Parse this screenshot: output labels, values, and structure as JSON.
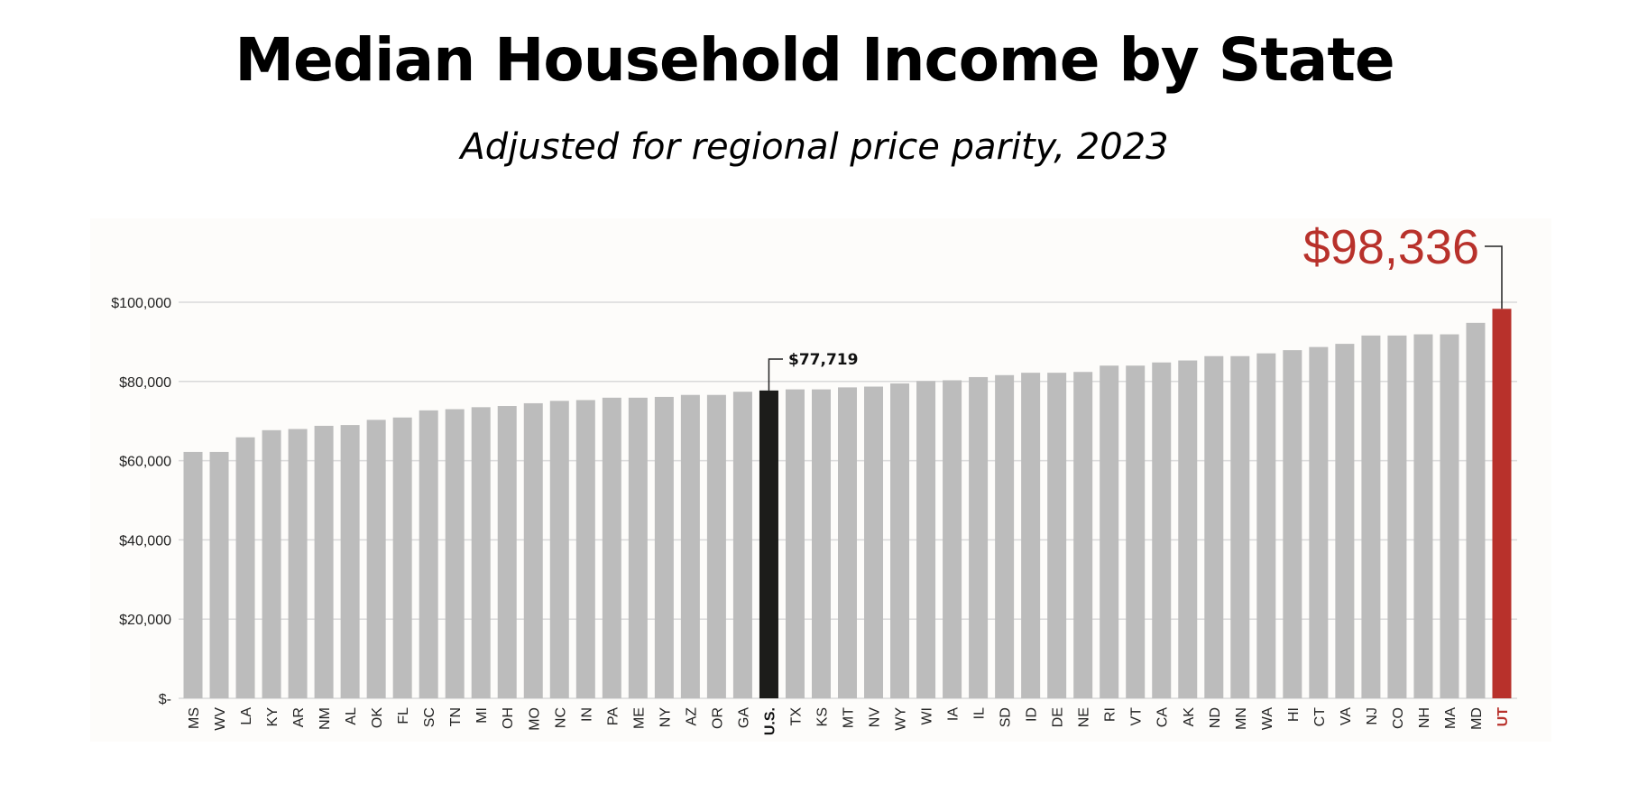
{
  "chart_data": {
    "type": "bar",
    "title": "Median Household Income by State",
    "subtitle": "Adjusted for regional price parity, 2023",
    "xlabel": "",
    "ylabel": "",
    "ylim": [
      0,
      100000
    ],
    "yticks": [
      0,
      20000,
      40000,
      60000,
      80000,
      100000
    ],
    "ytick_labels": [
      "$-",
      "$20,000",
      "$40,000",
      "$60,000",
      "$80,000",
      "$100,000"
    ],
    "grid": true,
    "categories": [
      "MS",
      "WV",
      "LA",
      "KY",
      "AR",
      "NM",
      "AL",
      "OK",
      "FL",
      "SC",
      "TN",
      "MI",
      "OH",
      "MO",
      "NC",
      "IN",
      "PA",
      "ME",
      "NY",
      "AZ",
      "OR",
      "GA",
      "U.S.",
      "TX",
      "KS",
      "MT",
      "NV",
      "WY",
      "WI",
      "IA",
      "IL",
      "SD",
      "ID",
      "DE",
      "NE",
      "RI",
      "VT",
      "CA",
      "AK",
      "ND",
      "MN",
      "WA",
      "HI",
      "CT",
      "VA",
      "NJ",
      "CO",
      "NH",
      "MA",
      "MD",
      "UT"
    ],
    "values": [
      62200,
      62200,
      65900,
      67700,
      68000,
      68800,
      69000,
      70300,
      70900,
      72700,
      73000,
      73500,
      73800,
      74500,
      75100,
      75300,
      75900,
      75900,
      76100,
      76600,
      76600,
      77400,
      77719,
      78000,
      78000,
      78500,
      78700,
      79500,
      80100,
      80300,
      81100,
      81600,
      82200,
      82200,
      82400,
      84000,
      84000,
      84800,
      85300,
      86400,
      86400,
      87100,
      87900,
      88700,
      89500,
      91600,
      91600,
      91900,
      91900,
      94800,
      98336
    ],
    "highlights": {
      "U.S.": {
        "label": "$77,719",
        "color": "#1c1c1a"
      },
      "UT": {
        "label": "$98,336",
        "color": "#b8312b"
      }
    },
    "colors": {
      "bar": "#bcbcbc",
      "us": "#1c1c1a",
      "ut": "#b8312b",
      "grid": "#d9d9d9"
    }
  }
}
